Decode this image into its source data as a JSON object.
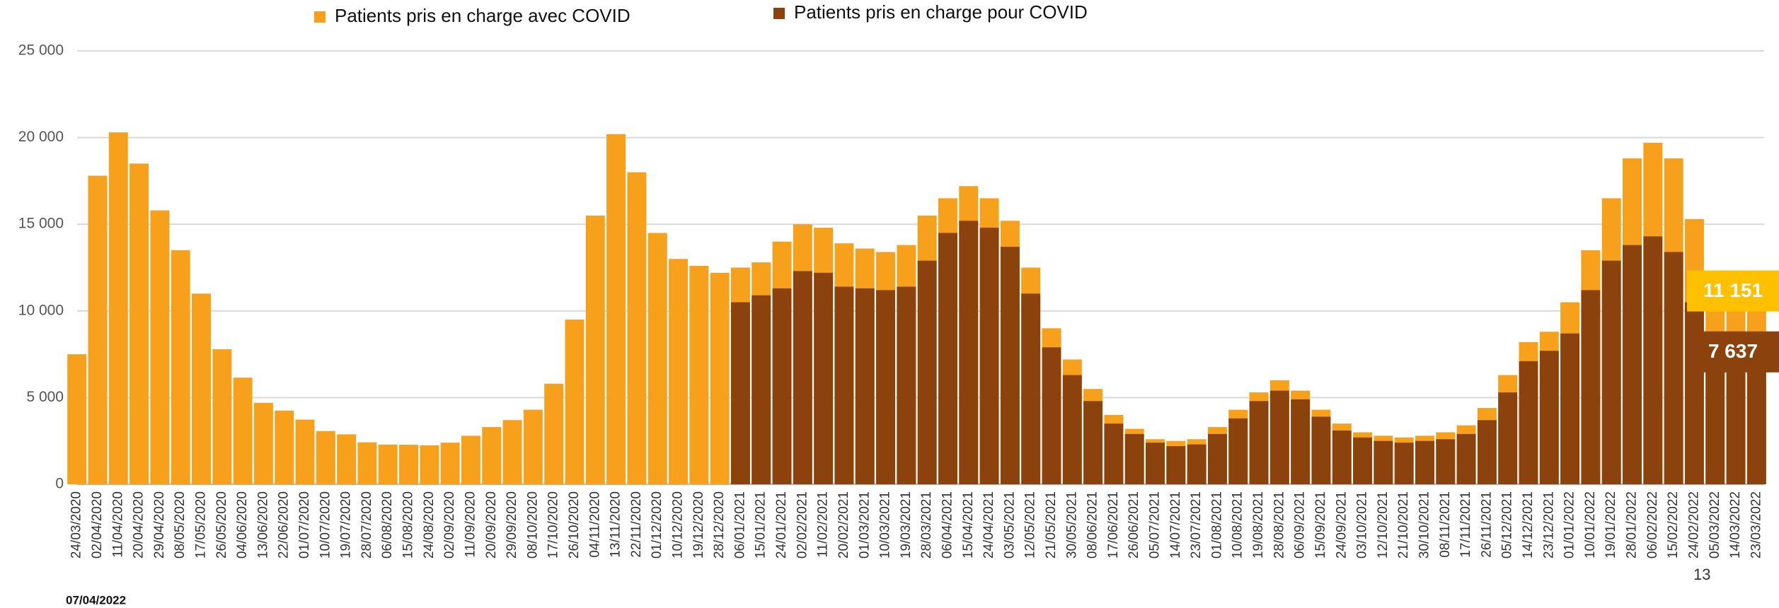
{
  "chart_data": {
    "type": "bar",
    "legend": "top",
    "grid": true,
    "categories": [
      "24/03/2020",
      "02/04/2020",
      "11/04/2020",
      "20/04/2020",
      "29/04/2020",
      "08/05/2020",
      "17/05/2020",
      "26/05/2020",
      "04/06/2020",
      "13/06/2020",
      "22/06/2020",
      "01/07/2020",
      "10/07/2020",
      "19/07/2020",
      "28/07/2020",
      "06/08/2020",
      "15/08/2020",
      "24/08/2020",
      "02/09/2020",
      "11/09/2020",
      "20/09/2020",
      "29/09/2020",
      "08/10/2020",
      "17/10/2020",
      "26/10/2020",
      "04/11/2020",
      "13/11/2020",
      "22/11/2020",
      "01/12/2020",
      "10/12/2020",
      "19/12/2020",
      "28/12/2020",
      "06/01/2021",
      "15/01/2021",
      "24/01/2021",
      "02/02/2021",
      "11/02/2021",
      "20/02/2021",
      "01/03/2021",
      "10/03/2021",
      "19/03/2021",
      "28/03/2021",
      "06/04/2021",
      "15/04/2021",
      "24/04/2021",
      "03/05/2021",
      "12/05/2021",
      "21/05/2021",
      "30/05/2021",
      "08/06/2021",
      "17/06/2021",
      "26/06/2021",
      "05/07/2021",
      "14/07/2021",
      "23/07/2021",
      "01/08/2021",
      "10/08/2021",
      "19/08/2021",
      "28/08/2021",
      "06/09/2021",
      "15/09/2021",
      "24/09/2021",
      "03/10/2021",
      "12/10/2021",
      "21/10/2021",
      "30/10/2021",
      "08/11/2021",
      "17/11/2021",
      "26/11/2021",
      "05/12/2021",
      "14/12/2021",
      "23/12/2021",
      "01/01/2022",
      "10/01/2022",
      "19/01/2022",
      "28/01/2022",
      "06/02/2022",
      "15/02/2022",
      "24/02/2022",
      "05/03/2022",
      "14/03/2022",
      "23/03/2022"
    ],
    "series": [
      {
        "name": "Patients pris en charge avec COVID",
        "color": "#f7a01c",
        "values": [
          7500,
          17800,
          20300,
          18500,
          15800,
          13500,
          11000,
          7790,
          6150,
          4700,
          4250,
          3730,
          3070,
          2880,
          2420,
          2290,
          2280,
          2250,
          2400,
          2800,
          3300,
          3700,
          4300,
          5800,
          9500,
          15500,
          20200,
          18000,
          14500,
          13000,
          12600,
          12200,
          12500,
          12800,
          14000,
          15000,
          14800,
          13900,
          13600,
          13400,
          13800,
          15500,
          16500,
          17200,
          16500,
          15200,
          12500,
          9000,
          7200,
          5500,
          4000,
          3200,
          2600,
          2500,
          2600,
          3300,
          4300,
          5300,
          6000,
          5400,
          4300,
          3500,
          3000,
          2800,
          2700,
          2800,
          3000,
          3400,
          4400,
          6300,
          8200,
          8800,
          10500,
          13500,
          16500,
          18800,
          19700,
          18800,
          15300,
          12000,
          10900,
          11151
        ],
        "value_labels": [
          null,
          null,
          null,
          null,
          null,
          null,
          null,
          null,
          null,
          null,
          null,
          null,
          null,
          null,
          null,
          null,
          null,
          null,
          null,
          null,
          null,
          null,
          null,
          null,
          null,
          null,
          null,
          null,
          null,
          null,
          null,
          null,
          null,
          null,
          null,
          null,
          null,
          null,
          null,
          null,
          null,
          null,
          null,
          null,
          null,
          null,
          null,
          null,
          null,
          null,
          null,
          null,
          null,
          null,
          null,
          null,
          null,
          null,
          null,
          null,
          null,
          null,
          null,
          null,
          null,
          null,
          null,
          null,
          null,
          null,
          null,
          null,
          null,
          null,
          null,
          null,
          null,
          null,
          null,
          null,
          null,
          "11 151"
        ],
        "label_color": "#ffc000"
      },
      {
        "name": "Patients pris en charge pour COVID",
        "color": "#8c420c",
        "values": [
          null,
          null,
          null,
          null,
          null,
          null,
          null,
          null,
          null,
          null,
          null,
          null,
          null,
          null,
          null,
          null,
          null,
          null,
          null,
          null,
          null,
          null,
          null,
          null,
          null,
          null,
          null,
          null,
          null,
          null,
          null,
          null,
          10500,
          10900,
          11300,
          12300,
          12200,
          11400,
          11300,
          11200,
          11400,
          12900,
          14500,
          15200,
          14800,
          13700,
          11000,
          7900,
          6300,
          4800,
          3500,
          2900,
          2400,
          2200,
          2300,
          2900,
          3800,
          4800,
          5400,
          4900,
          3900,
          3100,
          2700,
          2500,
          2400,
          2500,
          2600,
          2900,
          3700,
          5300,
          7100,
          7700,
          8700,
          11200,
          12900,
          13800,
          14300,
          13400,
          10500,
          8400,
          7600,
          7637
        ],
        "value_labels": [
          null,
          null,
          null,
          null,
          null,
          null,
          null,
          null,
          null,
          null,
          null,
          null,
          null,
          null,
          null,
          null,
          null,
          null,
          null,
          null,
          null,
          null,
          null,
          null,
          null,
          null,
          null,
          null,
          null,
          null,
          null,
          null,
          null,
          null,
          null,
          null,
          null,
          null,
          null,
          null,
          null,
          null,
          null,
          null,
          null,
          null,
          null,
          null,
          null,
          null,
          null,
          null,
          null,
          null,
          null,
          null,
          null,
          null,
          null,
          null,
          null,
          null,
          null,
          null,
          null,
          null,
          null,
          null,
          null,
          null,
          null,
          null,
          null,
          null,
          null,
          null,
          null,
          null,
          null,
          null,
          null,
          "7 637"
        ],
        "label_color": "#8c420c"
      }
    ],
    "ylim": [
      0,
      25000
    ],
    "yticks": [
      0,
      {
        "value": 5000,
        "label": "5 000"
      },
      {
        "value": 10000,
        "label": "10 000"
      },
      {
        "value": 15000,
        "label": "15 000"
      },
      {
        "value": 20000,
        "label": "20 000"
      },
      {
        "value": 25000,
        "label": "25 000"
      }
    ]
  },
  "footer_date": "07/04/2022",
  "page_number": "13"
}
